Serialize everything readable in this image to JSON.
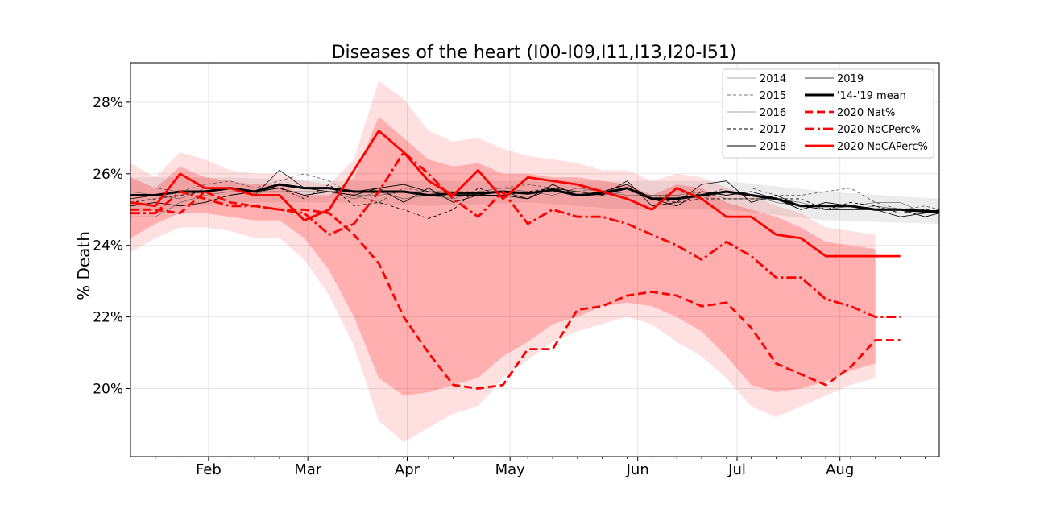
{
  "chart_data": {
    "type": "line",
    "title": "Diseases of the heart (I00-I09,I11,I13,I20-I51)",
    "xlabel": "",
    "ylabel": "% Death",
    "x_unit": "day of year",
    "xlim": [
      15,
      243
    ],
    "ylim": [
      18.1,
      29.1
    ],
    "x_ticks": [
      {
        "x": 37,
        "label": "Feb"
      },
      {
        "x": 65,
        "label": "Mar"
      },
      {
        "x": 93,
        "label": "Apr"
      },
      {
        "x": 122,
        "label": "May"
      },
      {
        "x": 158,
        "label": "Jun"
      },
      {
        "x": 186,
        "label": "Jul"
      },
      {
        "x": 215,
        "label": "Aug"
      }
    ],
    "y_ticks": [
      {
        "y": 20,
        "label": "20%"
      },
      {
        "y": 22,
        "label": "22%"
      },
      {
        "y": 24,
        "label": "24%"
      },
      {
        "y": 26,
        "label": "26%"
      },
      {
        "y": 28,
        "label": "28%"
      }
    ],
    "grid": true,
    "legend": {
      "position": "top-right",
      "columns": 2
    },
    "series": [
      {
        "name": "2014",
        "color": "#555555",
        "width": 0.6,
        "dash": "",
        "x": [
          15,
          22,
          29,
          36,
          43,
          50,
          57,
          64,
          71,
          78,
          85,
          92,
          99,
          106,
          113,
          120,
          127,
          134,
          141,
          148,
          155,
          162,
          169,
          176,
          183,
          190,
          197,
          204,
          211,
          218,
          225,
          232,
          239,
          243
        ],
        "y": [
          24.8,
          24.8,
          25.2,
          25.4,
          25.5,
          25.5,
          25.5,
          25.5,
          25.5,
          25.4,
          25.4,
          25.5,
          25.5,
          25.5,
          25.4,
          25.5,
          25.5,
          25.5,
          25.5,
          25.4,
          25.5,
          25.4,
          25.4,
          25.3,
          25.5,
          25.4,
          25.2,
          25.1,
          25.0,
          25.0,
          25.1,
          25.0,
          25.0,
          24.9
        ]
      },
      {
        "name": "2015",
        "color": "#555555",
        "width": 0.8,
        "dash": "4,3",
        "x": [
          15,
          22,
          29,
          36,
          43,
          50,
          57,
          64,
          71,
          78,
          85,
          92,
          99,
          106,
          113,
          120,
          127,
          134,
          141,
          148,
          155,
          162,
          169,
          176,
          183,
          190,
          197,
          204,
          211,
          218,
          225,
          232,
          239,
          243
        ],
        "y": [
          25.6,
          25.6,
          25.5,
          25.7,
          25.8,
          25.6,
          25.8,
          26.0,
          25.8,
          25.4,
          25.2,
          25.6,
          25.5,
          25.5,
          25.5,
          25.6,
          25.7,
          25.6,
          25.5,
          25.6,
          25.6,
          25.3,
          25.5,
          25.4,
          25.6,
          25.6,
          25.4,
          25.4,
          25.5,
          25.6,
          25.2,
          25.0,
          25.1,
          25.0
        ]
      },
      {
        "name": "2016",
        "color": "#555555",
        "width": 0.6,
        "dash": "",
        "x": [
          15,
          22,
          29,
          36,
          43,
          50,
          57,
          64,
          71,
          78,
          85,
          92,
          99,
          106,
          113,
          120,
          127,
          134,
          141,
          148,
          155,
          162,
          169,
          176,
          183,
          190,
          197,
          204,
          211,
          218,
          225,
          232,
          239,
          243
        ],
        "y": [
          25.5,
          25.4,
          25.3,
          25.6,
          25.6,
          25.4,
          25.7,
          25.6,
          25.5,
          25.3,
          25.5,
          25.3,
          25.4,
          25.3,
          25.5,
          25.6,
          25.5,
          25.4,
          25.6,
          25.5,
          25.4,
          25.4,
          25.4,
          25.5,
          25.3,
          25.3,
          25.3,
          25.2,
          25.0,
          25.1,
          25.2,
          25.2,
          24.9,
          25.0
        ]
      },
      {
        "name": "2017",
        "color": "#000000",
        "width": 0.9,
        "dash": "4,3",
        "x": [
          15,
          22,
          29,
          36,
          43,
          50,
          57,
          64,
          71,
          78,
          85,
          92,
          99,
          106,
          113,
          120,
          127,
          134,
          141,
          148,
          155,
          162,
          169,
          176,
          183,
          190,
          197,
          204,
          211,
          218,
          225,
          232,
          239,
          243
        ],
        "y": [
          25.2,
          25.3,
          25.4,
          25.5,
          25.6,
          25.5,
          25.6,
          25.3,
          25.7,
          25.1,
          25.2,
          25.0,
          24.75,
          25.0,
          25.6,
          25.4,
          25.5,
          25.6,
          25.4,
          25.5,
          25.6,
          25.3,
          25.2,
          25.3,
          25.3,
          25.3,
          25.3,
          25.3,
          25.0,
          25.2,
          25.1,
          24.9,
          25.0,
          24.95
        ]
      },
      {
        "name": "2018",
        "color": "#000000",
        "width": 0.9,
        "dash": "",
        "x": [
          15,
          22,
          29,
          36,
          43,
          50,
          57,
          64,
          71,
          78,
          85,
          92,
          99,
          106,
          113,
          120,
          127,
          134,
          141,
          148,
          155,
          162,
          169,
          176,
          183,
          190,
          197,
          204,
          211,
          218,
          225,
          232,
          239,
          243
        ],
        "y": [
          25.1,
          25.2,
          25.1,
          25.2,
          25.4,
          25.5,
          25.6,
          25.4,
          25.5,
          25.4,
          25.6,
          25.7,
          25.5,
          25.4,
          25.4,
          25.4,
          25.3,
          25.7,
          25.4,
          25.5,
          25.7,
          25.3,
          25.1,
          25.5,
          25.4,
          25.5,
          25.3,
          25.0,
          25.2,
          25.1,
          25.0,
          25.0,
          24.8,
          24.9
        ]
      },
      {
        "name": "2019",
        "color": "#000000",
        "width": 0.8,
        "dash": "",
        "x": [
          15,
          22,
          29,
          36,
          43,
          50,
          57,
          64,
          71,
          78,
          85,
          92,
          99,
          106,
          113,
          120,
          127,
          134,
          141,
          148,
          155,
          162,
          169,
          176,
          183,
          190,
          197,
          204,
          211,
          218,
          225,
          232,
          239,
          243
        ],
        "y": [
          25.3,
          25.4,
          25.5,
          25.5,
          25.6,
          25.4,
          26.1,
          25.6,
          25.5,
          25.5,
          25.6,
          25.2,
          25.6,
          25.2,
          25.4,
          25.5,
          25.3,
          25.6,
          25.5,
          25.4,
          25.8,
          25.1,
          25.2,
          25.7,
          25.8,
          25.2,
          25.4,
          25.1,
          25.0,
          25.0,
          25.0,
          24.8,
          24.9,
          25.0
        ]
      },
      {
        "name": "'14-'19 mean",
        "color": "#000000",
        "width": 3.0,
        "dash": "",
        "x": [
          15,
          22,
          29,
          36,
          43,
          50,
          57,
          64,
          71,
          78,
          85,
          92,
          99,
          106,
          113,
          120,
          127,
          134,
          141,
          148,
          155,
          162,
          169,
          176,
          183,
          190,
          197,
          204,
          211,
          218,
          225,
          232,
          239,
          243
        ],
        "y": [
          25.4,
          25.4,
          25.5,
          25.5,
          25.6,
          25.5,
          25.7,
          25.6,
          25.6,
          25.5,
          25.5,
          25.5,
          25.4,
          25.45,
          25.45,
          25.5,
          25.45,
          25.55,
          25.4,
          25.45,
          25.6,
          25.3,
          25.3,
          25.4,
          25.5,
          25.4,
          25.3,
          25.1,
          25.1,
          25.1,
          25.0,
          25.0,
          24.95,
          24.95
        ]
      },
      {
        "name": "2020 Nat%",
        "color": "#ff0000",
        "width": 2.8,
        "dash": "10,5",
        "x": [
          15,
          22,
          29,
          36,
          43,
          50,
          57,
          64,
          71,
          78,
          85,
          92,
          99,
          106,
          113,
          120,
          127,
          134,
          141,
          148,
          155,
          162,
          169,
          176,
          183,
          190,
          197,
          204,
          211,
          218,
          225,
          232
        ],
        "y": [
          25.0,
          25.0,
          24.9,
          25.5,
          25.2,
          25.1,
          25.0,
          25.0,
          24.9,
          24.3,
          23.5,
          22.0,
          21.0,
          20.1,
          20.0,
          20.1,
          21.1,
          21.1,
          22.2,
          22.3,
          22.6,
          22.7,
          22.6,
          22.3,
          22.4,
          21.7,
          20.7,
          20.4,
          20.1,
          20.6,
          21.35,
          21.35
        ]
      },
      {
        "name": "2020 NoCPerc%",
        "color": "#ff0000",
        "width": 2.8,
        "dash": "12,4,3,4",
        "x": [
          15,
          22,
          29,
          36,
          43,
          50,
          57,
          64,
          71,
          78,
          85,
          92,
          99,
          106,
          113,
          120,
          127,
          134,
          141,
          148,
          155,
          162,
          169,
          176,
          183,
          190,
          197,
          204,
          211,
          218,
          225,
          232
        ],
        "y": [
          24.9,
          24.9,
          25.5,
          25.3,
          25.1,
          25.1,
          25.0,
          24.9,
          24.3,
          24.6,
          25.5,
          26.6,
          26.0,
          25.3,
          24.8,
          25.5,
          24.6,
          25.0,
          24.8,
          24.8,
          24.6,
          24.3,
          24.0,
          23.6,
          24.1,
          23.7,
          23.1,
          23.1,
          22.5,
          22.3,
          22.0,
          22.0
        ]
      },
      {
        "name": "2020 NoCAPerc%",
        "color": "#ff0000",
        "width": 2.8,
        "dash": "",
        "x": [
          15,
          22,
          29,
          36,
          43,
          50,
          57,
          64,
          71,
          78,
          85,
          92,
          99,
          106,
          113,
          120,
          127,
          134,
          141,
          148,
          155,
          162,
          169,
          176,
          183,
          190,
          197,
          204,
          211,
          218,
          225,
          232
        ],
        "y": [
          25.2,
          25.1,
          26.0,
          25.6,
          25.6,
          25.4,
          25.4,
          24.7,
          25.0,
          26.1,
          27.2,
          26.6,
          25.8,
          25.4,
          26.1,
          25.3,
          25.9,
          25.8,
          25.7,
          25.5,
          25.3,
          25.0,
          25.6,
          25.3,
          24.8,
          24.8,
          24.3,
          24.2,
          23.7,
          23.7,
          23.7,
          23.7
        ]
      }
    ],
    "bands": [
      {
        "color": "#808080",
        "opacity": 0.15,
        "x": [
          15,
          43,
          71,
          99,
          127,
          155,
          183,
          211,
          243
        ],
        "upper": [
          25.9,
          25.9,
          25.8,
          25.8,
          25.8,
          25.8,
          25.8,
          25.5,
          25.3
        ],
        "lower": [
          24.9,
          25.2,
          25.2,
          25.1,
          25.2,
          25.0,
          25.0,
          24.7,
          24.6
        ]
      },
      {
        "color": "#ff0000",
        "opacity": 0.12,
        "x": [
          15,
          22,
          29,
          36,
          43,
          50,
          57,
          64,
          71,
          78,
          85,
          92,
          99,
          106,
          113,
          120,
          127,
          134,
          141,
          148,
          155,
          162,
          169,
          176,
          183,
          190,
          197,
          204,
          211,
          218,
          225
        ],
        "upper": [
          26.3,
          25.9,
          26.6,
          26.4,
          26.1,
          26.0,
          26.0,
          25.8,
          25.7,
          26.4,
          28.6,
          28.1,
          27.2,
          26.9,
          27.0,
          26.7,
          26.5,
          26.4,
          26.3,
          26.1,
          26.1,
          25.8,
          26.0,
          25.9,
          25.6,
          25.4,
          25.1,
          24.9,
          24.5,
          24.4,
          24.3
        ],
        "lower": [
          23.8,
          24.2,
          24.5,
          24.5,
          24.4,
          24.2,
          24.2,
          23.6,
          22.6,
          21.2,
          19.1,
          18.5,
          18.9,
          19.3,
          19.5,
          20.3,
          20.8,
          21.3,
          21.6,
          21.8,
          22.0,
          21.8,
          21.3,
          20.9,
          20.3,
          19.5,
          19.2,
          19.5,
          19.8,
          20.1,
          20.3
        ]
      },
      {
        "color": "#ff0000",
        "opacity": 0.22,
        "x": [
          15,
          22,
          29,
          36,
          43,
          50,
          57,
          64,
          71,
          78,
          85,
          92,
          99,
          106,
          113,
          120,
          127,
          134,
          141,
          148,
          155,
          162,
          169,
          176,
          183,
          190,
          197,
          204,
          211,
          218,
          225
        ],
        "upper": [
          25.9,
          25.6,
          26.2,
          25.9,
          25.8,
          25.7,
          25.7,
          25.4,
          25.4,
          25.9,
          27.6,
          27.0,
          26.4,
          26.2,
          26.3,
          26.0,
          26.0,
          25.9,
          25.9,
          25.8,
          25.7,
          25.4,
          25.7,
          25.6,
          25.2,
          25.0,
          24.8,
          24.5,
          24.1,
          24.0,
          23.9
        ],
        "lower": [
          24.2,
          24.6,
          24.9,
          24.9,
          24.8,
          24.7,
          24.7,
          24.2,
          23.3,
          22.0,
          20.3,
          19.8,
          19.9,
          20.1,
          20.3,
          20.9,
          21.3,
          21.8,
          22.0,
          22.3,
          22.4,
          22.3,
          22.0,
          21.6,
          20.9,
          20.1,
          19.9,
          20.0,
          20.2,
          20.5,
          20.7
        ]
      }
    ]
  }
}
